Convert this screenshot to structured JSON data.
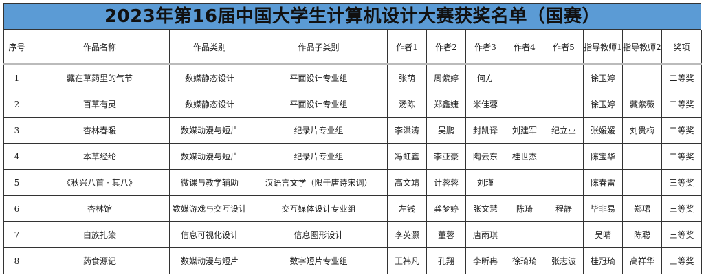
{
  "title": "2023年第16届中国大学生计算机设计大赛获奖名单（国赛）",
  "headers": [
    "序号",
    "作品名称",
    "作品类别",
    "作品子类别",
    "作者1",
    "作者2",
    "作者3",
    "作者4",
    "作者5",
    "指导教师1",
    "指导教师2",
    "奖项"
  ],
  "rows": [
    [
      "1",
      "藏在草药里的气节",
      "数媒静态设计",
      "平面设计专业组",
      "张萌",
      "周紫婷",
      "何方",
      "",
      "",
      "徐玉婷",
      "",
      "二等奖"
    ],
    [
      "2",
      "百草有灵",
      "数媒静态设计",
      "平面设计专业组",
      "汤陈",
      "郑鑫婕",
      "米佳蓉",
      "",
      "",
      "徐玉婷",
      "藏紫薇",
      "二等奖"
    ],
    [
      "3",
      "杏林春暖",
      "数媒动漫与短片",
      "纪录片专业组",
      "李洪涛",
      "吴鹏",
      "封凯译",
      "刘建军",
      "纪立业",
      "张媛媛",
      "刘贵梅",
      "二等奖"
    ],
    [
      "4",
      "本草经纶",
      "数媒动漫与短片",
      "纪录片专业组",
      "冯虹鑫",
      "李亚豪",
      "陶云东",
      "桂世杰",
      "",
      "陈宝华",
      "",
      "二等奖"
    ],
    [
      "5",
      "《秋兴八首 · 其八》",
      "微课与教学辅助",
      "汉语言文学（限于唐诗宋词）",
      "高文靖",
      "计蓉蓉",
      "刘瑾",
      "",
      "",
      "陈春雷",
      "",
      "三等奖"
    ],
    [
      "6",
      "杏林馆",
      "数媒游戏与交互设计",
      "交互媒体设计专业组",
      "左钱",
      "龚梦婷",
      "张文慧",
      "陈琦",
      "程静",
      "毕非易",
      "郑珺",
      "三等奖"
    ],
    [
      "7",
      "白族扎染",
      "信息可视化设计",
      "信息图形设计",
      "李英灏",
      "董蓉",
      "唐雨琪",
      "",
      "",
      "吴晴",
      "陈聪",
      "三等奖"
    ],
    [
      "8",
      "药食源记",
      "数媒动漫与短片",
      "数字短片专业组",
      "王祎凡",
      "孔翔",
      "李昕冉",
      "徐琦琦",
      "张志波",
      "桂冠琦",
      "高祥华",
      "三等奖"
    ]
  ],
  "colors": {
    "title_bg": "#5b9bd5"
  }
}
